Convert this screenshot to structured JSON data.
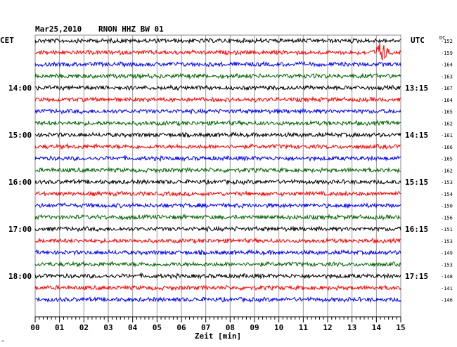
{
  "header": {
    "date": "Mar25,2010",
    "station": "RNON HHZ BW 01"
  },
  "left_label": "CET",
  "right_label": "UTC",
  "dc_label": "DC",
  "cet_hours": [
    "14:00",
    "15:00",
    "16:00",
    "17:00",
    "18:00"
  ],
  "utc_hours": [
    "13:15",
    "14:15",
    "15:15",
    "16:15",
    "17:15"
  ],
  "dc_values": [
    "-152",
    "-159",
    "-164",
    "-163",
    "-167",
    "-164",
    "-165",
    "-162",
    "-161",
    "-166",
    "-165",
    "-162",
    "-153",
    "-154",
    "-150",
    "-156",
    "-151",
    "-153",
    "-149",
    "-153",
    "-148",
    "-141",
    "-146"
  ],
  "trace_colors": [
    "#000000",
    "#ff0000",
    "#0000ff",
    "#006400"
  ],
  "x_ticks": [
    "00",
    "01",
    "02",
    "03",
    "04",
    "05",
    "06",
    "07",
    "08",
    "09",
    "10",
    "11",
    "12",
    "13",
    "14",
    "15"
  ],
  "xlabel": "Zeit [min]",
  "event": {
    "trace_index": 1,
    "minute": 14.2
  },
  "footer_mark": "^"
}
